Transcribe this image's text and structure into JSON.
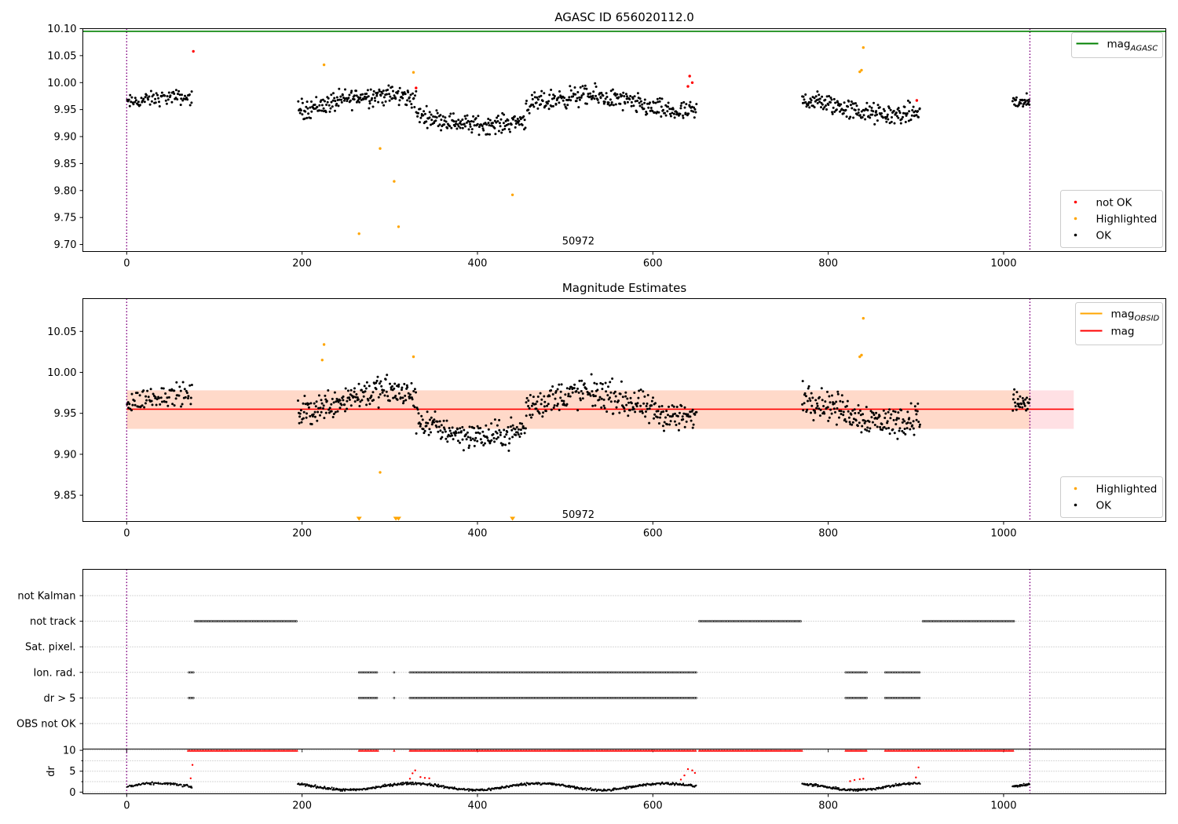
{
  "chart_data": [
    {
      "type": "scatter",
      "title": "AGASC ID 656020112.0",
      "xlabel": "",
      "ylabel": "",
      "xlim": [
        -50,
        1185
      ],
      "ylim": [
        9.687,
        10.1
      ],
      "xticks": [
        0,
        200,
        400,
        600,
        800,
        1000
      ],
      "yticks": [
        9.7,
        9.75,
        9.8,
        9.85,
        9.9,
        9.95,
        10.0,
        10.05,
        10.1
      ],
      "ytick_labels": [
        "9.70",
        "9.75",
        "9.80",
        "9.85",
        "9.90",
        "9.95",
        "10.00",
        "10.05",
        "10.10"
      ],
      "obsid_boundaries": [
        0,
        1030
      ],
      "obsid_label": {
        "text": "50972",
        "x": 515,
        "y": 9.706
      },
      "hlines": [
        {
          "name": "mag_AGASC",
          "y": 10.095,
          "x": [
            -50,
            1185
          ],
          "color": "#008000"
        }
      ],
      "legend_lines": [
        {
          "text": "mag",
          "sub": "AGASC",
          "color": "#008000"
        }
      ],
      "legend_points": [
        {
          "text": "not OK",
          "color": "#ff0000"
        },
        {
          "text": "Highlighted",
          "color": "#ffa500"
        },
        {
          "text": "OK",
          "color": "#000000"
        }
      ],
      "series": [
        {
          "name": "not OK",
          "color": "#ff0000",
          "points": [
            [
              76,
              10.058
            ],
            [
              330,
              9.99
            ],
            [
              640,
              9.993
            ],
            [
              642,
              10.012
            ],
            [
              645,
              10.0
            ],
            [
              901,
              9.967
            ]
          ]
        },
        {
          "name": "Highlighted",
          "color": "#ffa500",
          "points": [
            [
              225,
              10.033
            ],
            [
              265,
              9.72
            ],
            [
              289,
              9.878
            ],
            [
              305,
              9.817
            ],
            [
              310,
              9.733
            ],
            [
              327,
              10.019
            ],
            [
              440,
              9.792
            ],
            [
              836,
              10.02
            ],
            [
              838,
              10.023
            ],
            [
              840,
              10.065
            ]
          ]
        },
        {
          "name": "OK",
          "color": "#000000",
          "gen_segments": [
            [
              0,
              75,
              80,
              9.962,
              0.018
            ],
            [
              195,
              330,
              190,
              9.962,
              0.025
            ],
            [
              330,
              455,
              170,
              9.935,
              0.022
            ],
            [
              455,
              650,
              260,
              9.96,
              0.025
            ],
            [
              770,
              905,
              190,
              9.955,
              0.025
            ],
            [
              1010,
              1030,
              30,
              9.955,
              0.02
            ]
          ]
        }
      ]
    },
    {
      "type": "scatter",
      "title": "Magnitude Estimates",
      "xlabel": "",
      "ylabel": "",
      "xlim": [
        -50,
        1185
      ],
      "ylim": [
        9.818,
        10.09
      ],
      "xticks": [
        0,
        200,
        400,
        600,
        800,
        1000
      ],
      "yticks": [
        9.85,
        9.9,
        9.95,
        10.0,
        10.05
      ],
      "ytick_labels": [
        "9.85",
        "9.90",
        "9.95",
        "10.00",
        "10.05"
      ],
      "obsid_boundaries": [
        0,
        1030
      ],
      "obsid_label": {
        "text": "50972",
        "x": 515,
        "y": 9.826
      },
      "band": {
        "y": [
          9.931,
          9.978
        ],
        "x": [
          0,
          1080
        ],
        "color": "#ffd9c9"
      },
      "hlines": [
        {
          "name": "mag",
          "y": 9.955,
          "x": [
            0,
            1080
          ],
          "color": "#ff0000"
        }
      ],
      "legend_lines": [
        {
          "text": "mag",
          "sub": "OBSID",
          "color": "#ffa500"
        },
        {
          "text": "mag",
          "sub": "",
          "color": "#ff0000"
        }
      ],
      "legend_points": [
        {
          "text": "Highlighted",
          "color": "#ffa500"
        },
        {
          "text": "OK",
          "color": "#000000"
        }
      ],
      "markers_below": {
        "color": "#ffa500",
        "x": [
          265,
          307,
          310,
          440
        ]
      },
      "series": [
        {
          "name": "Highlighted",
          "color": "#ffa500",
          "points": [
            [
              223,
              10.015
            ],
            [
              225,
              10.034
            ],
            [
              289,
              9.878
            ],
            [
              327,
              10.019
            ],
            [
              836,
              10.019
            ],
            [
              838,
              10.021
            ],
            [
              840,
              10.066
            ]
          ]
        },
        {
          "name": "OK",
          "color": "#000000",
          "gen_segments": [
            [
              0,
              75,
              80,
              9.962,
              0.018
            ],
            [
              195,
              330,
              190,
              9.962,
              0.025
            ],
            [
              330,
              455,
              170,
              9.935,
              0.022
            ],
            [
              455,
              650,
              260,
              9.96,
              0.025
            ],
            [
              770,
              905,
              190,
              9.955,
              0.025
            ],
            [
              1010,
              1030,
              30,
              9.955,
              0.02
            ]
          ]
        }
      ]
    },
    {
      "type": "scatter",
      "title": "",
      "xlabel": "",
      "ylabel": "",
      "xlim": [
        -50,
        1185
      ],
      "xticks": [
        0,
        200,
        400,
        600,
        800,
        1000
      ],
      "obsid_boundaries": [
        0,
        1030
      ],
      "flag_rows": [
        {
          "label": "not Kalman",
          "segments": []
        },
        {
          "label": "not track",
          "segments": [
            [
              78,
              195
            ],
            [
              653,
              770
            ],
            [
              908,
              1012
            ]
          ]
        },
        {
          "label": "Sat. pixel.",
          "segments": []
        },
        {
          "label": "Ion. rad.",
          "segments": [
            [
              71,
              77
            ],
            [
              265,
              287
            ],
            [
              305,
              306
            ],
            [
              323,
              650
            ],
            [
              820,
              845
            ],
            [
              865,
              905
            ]
          ]
        },
        {
          "label": "dr > 5",
          "segments": [
            [
              71,
              77
            ],
            [
              265,
              287
            ],
            [
              305,
              306
            ],
            [
              323,
              650
            ],
            [
              820,
              845
            ],
            [
              865,
              905
            ]
          ]
        },
        {
          "label": "OBS not OK",
          "segments": []
        }
      ]
    },
    {
      "type": "scatter",
      "title": "",
      "xlabel": "",
      "ylabel": "dr",
      "xlim": [
        -50,
        1185
      ],
      "ylim": [
        -0.4,
        10.3
      ],
      "xticks": [
        0,
        200,
        400,
        600,
        800,
        1000
      ],
      "yticks": [
        0,
        5,
        10
      ],
      "ytick_labels": [
        "0",
        "5",
        "10"
      ],
      "obsid_boundaries": [
        0,
        1030
      ],
      "capped_value": 10,
      "capped_segments": [
        [
          70,
          195
        ],
        [
          265,
          287
        ],
        [
          305,
          306
        ],
        [
          323,
          650
        ],
        [
          653,
          770
        ],
        [
          820,
          845
        ],
        [
          865,
          1012
        ]
      ],
      "series": [
        {
          "name": "dr",
          "color": "#000000",
          "gen_segments": [
            [
              0,
              75,
              80
            ],
            [
              195,
              330,
              190
            ],
            [
              330,
              455,
              170
            ],
            [
              455,
              650,
              260
            ],
            [
              770,
              905,
              190
            ],
            [
              1010,
              1030,
              30
            ]
          ]
        },
        {
          "name": "dr > 3",
          "color": "#ff0000",
          "points": [
            [
              73,
              3.3
            ],
            [
              75,
              6.5
            ],
            [
              323,
              3.2
            ],
            [
              326,
              4.5
            ],
            [
              329,
              5.2
            ],
            [
              335,
              3.6
            ],
            [
              340,
              3.4
            ],
            [
              345,
              3.3
            ],
            [
              632,
              3.0
            ],
            [
              636,
              4.0
            ],
            [
              640,
              5.5
            ],
            [
              645,
              5.2
            ],
            [
              648,
              4.6
            ],
            [
              825,
              2.6
            ],
            [
              830,
              2.9
            ],
            [
              836,
              3.1
            ],
            [
              840,
              3.2
            ],
            [
              900,
              3.5
            ],
            [
              903,
              5.9
            ]
          ]
        }
      ]
    }
  ]
}
